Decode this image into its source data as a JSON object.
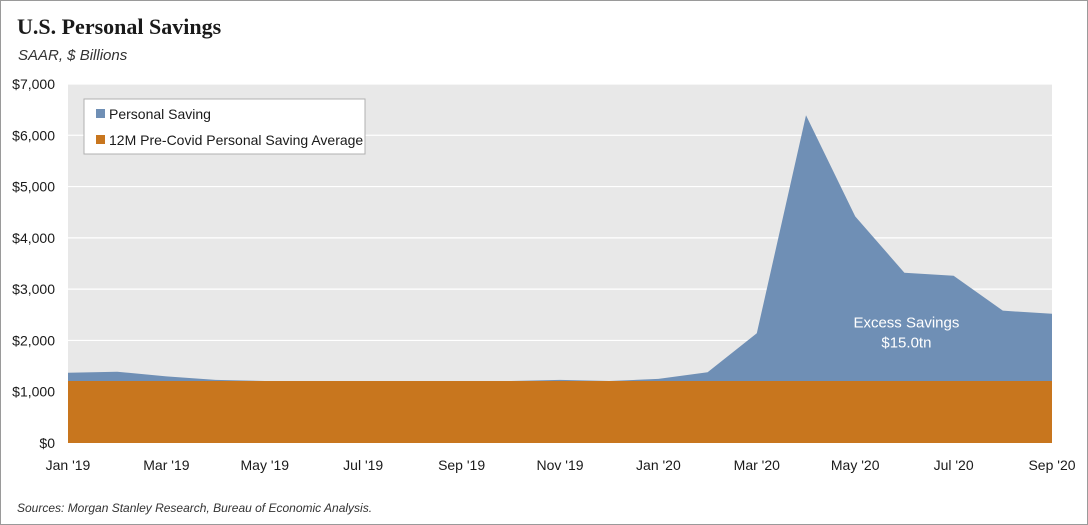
{
  "header": {
    "title": "U.S. Personal Savings",
    "subtitle": "SAAR, $ Billions"
  },
  "footer": {
    "source": "Sources: Morgan Stanley Research, Bureau of Economic Analysis."
  },
  "chart_data": {
    "type": "area",
    "title": "U.S. Personal Savings",
    "subtitle": "SAAR, $ Billions",
    "xlabel": "",
    "ylabel": "",
    "x": [
      "Jan '19",
      "Feb '19",
      "Mar '19",
      "Apr '19",
      "May '19",
      "Jun '19",
      "Jul '19",
      "Aug '19",
      "Sep '19",
      "Oct '19",
      "Nov '19",
      "Dec '19",
      "Jan '20",
      "Feb '20",
      "Mar '20",
      "Apr '20",
      "May '20",
      "Jun '20",
      "Jul '20",
      "Aug '20",
      "Sep '20"
    ],
    "x_tick_labels": [
      "Jan '19",
      "Mar '19",
      "May '19",
      "Jul '19",
      "Sep '19",
      "Nov '19",
      "Jan '20",
      "Mar '20",
      "May '20",
      "Jul '20",
      "Sep '20"
    ],
    "ylim": [
      0,
      7000
    ],
    "y_ticks": [
      0,
      1000,
      2000,
      3000,
      4000,
      5000,
      6000,
      7000
    ],
    "y_tick_labels": [
      "$0",
      "$1,000",
      "$2,000",
      "$3,000",
      "$4,000",
      "$5,000",
      "$6,000",
      "$7,000"
    ],
    "grid": true,
    "legend_position": "top-left",
    "series": [
      {
        "name": "Personal Saving",
        "color": "#6f8fb5",
        "values": [
          1370,
          1390,
          1300,
          1230,
          1210,
          1210,
          1210,
          1210,
          1210,
          1210,
          1230,
          1210,
          1250,
          1380,
          2140,
          6390,
          4420,
          3320,
          3260,
          2580,
          2520
        ]
      },
      {
        "name": "12M Pre-Covid Personal Saving Average",
        "color": "#c8761e",
        "values": [
          1210,
          1210,
          1210,
          1210,
          1210,
          1210,
          1210,
          1210,
          1210,
          1210,
          1210,
          1210,
          1210,
          1210,
          1210,
          1210,
          1210,
          1210,
          1210,
          1210,
          1210
        ]
      }
    ],
    "annotations": [
      {
        "text_line1": "Excess Savings",
        "text_line2": "$15.0tn",
        "x": "Jun '20",
        "y": 2100
      }
    ],
    "plot_background": "#e8e8e8",
    "grid_color": "#ffffff"
  }
}
